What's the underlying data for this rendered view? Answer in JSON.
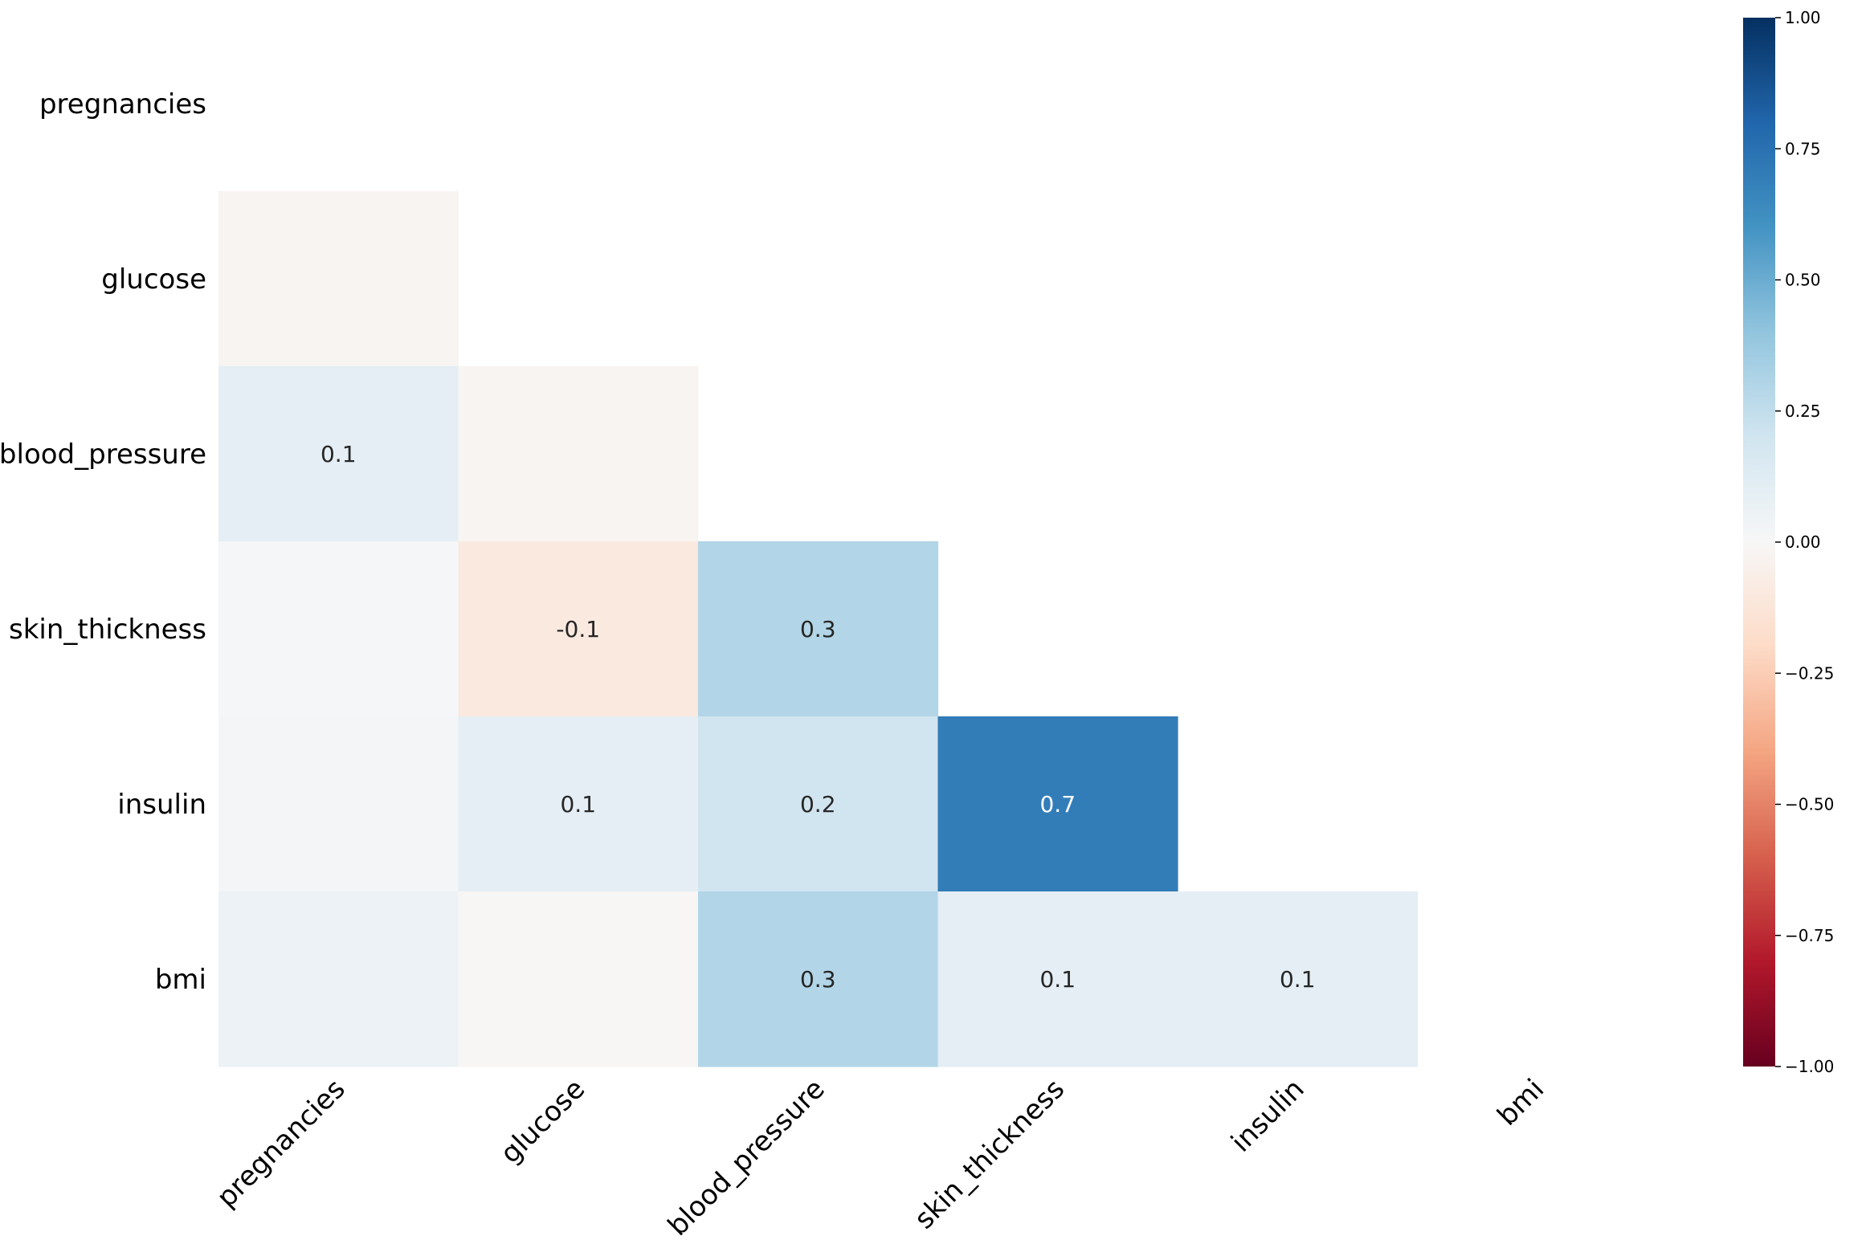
{
  "chart_data": {
    "type": "heatmap",
    "title": "",
    "xlabel": "",
    "ylabel": "",
    "variables": [
      "pregnancies",
      "glucose",
      "blood_pressure",
      "skin_thickness",
      "insulin",
      "bmi"
    ],
    "mask": "upper-triangle-and-diagonal",
    "cells": [
      {
        "row": "glucose",
        "col": "pregnancies",
        "value": -0.02,
        "label": ""
      },
      {
        "row": "blood_pressure",
        "col": "pregnancies",
        "value": 0.1,
        "label": "0.1"
      },
      {
        "row": "blood_pressure",
        "col": "glucose",
        "value": -0.02,
        "label": ""
      },
      {
        "row": "skin_thickness",
        "col": "pregnancies",
        "value": 0.01,
        "label": ""
      },
      {
        "row": "skin_thickness",
        "col": "glucose",
        "value": -0.1,
        "label": "-0.1"
      },
      {
        "row": "skin_thickness",
        "col": "blood_pressure",
        "value": 0.3,
        "label": "0.3"
      },
      {
        "row": "insulin",
        "col": "pregnancies",
        "value": 0.02,
        "label": ""
      },
      {
        "row": "insulin",
        "col": "glucose",
        "value": 0.1,
        "label": "0.1"
      },
      {
        "row": "insulin",
        "col": "blood_pressure",
        "value": 0.2,
        "label": "0.2"
      },
      {
        "row": "insulin",
        "col": "skin_thickness",
        "value": 0.7,
        "label": "0.7"
      },
      {
        "row": "bmi",
        "col": "pregnancies",
        "value": 0.06,
        "label": ""
      },
      {
        "row": "bmi",
        "col": "glucose",
        "value": -0.01,
        "label": ""
      },
      {
        "row": "bmi",
        "col": "blood_pressure",
        "value": 0.3,
        "label": "0.3"
      },
      {
        "row": "bmi",
        "col": "skin_thickness",
        "value": 0.1,
        "label": "0.1"
      },
      {
        "row": "bmi",
        "col": "insulin",
        "value": 0.1,
        "label": "0.1"
      }
    ],
    "colorbar": {
      "colormap": "RdBu",
      "range": [
        -1,
        1
      ],
      "ticks": [
        "1.00",
        "0.75",
        "0.50",
        "0.25",
        "0.00",
        "−0.25",
        "−0.50",
        "−0.75",
        "−1.00"
      ]
    },
    "colors": {
      "stops": [
        "#67001f",
        "#b2182b",
        "#d6604d",
        "#f4a582",
        "#fddbc7",
        "#f7f7f7",
        "#d1e5f0",
        "#92c5de",
        "#4393c3",
        "#2166ac",
        "#053061"
      ]
    }
  }
}
